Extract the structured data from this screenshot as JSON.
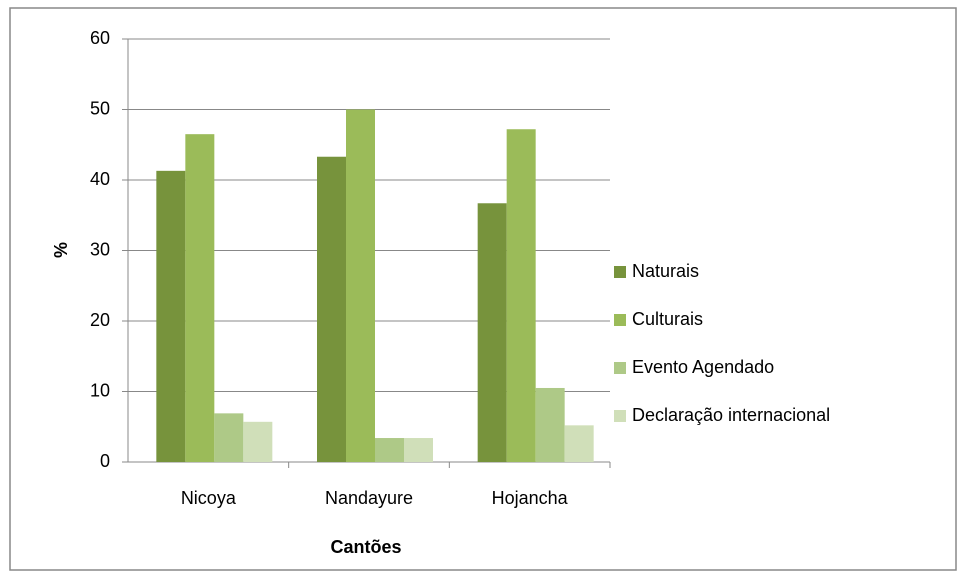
{
  "chart_data": {
    "type": "bar",
    "categories": [
      "Nicoya",
      "Nandayure",
      "Hojancha"
    ],
    "series": [
      {
        "name": "Naturais",
        "color": "#77933c",
        "values": [
          41.3,
          43.3,
          36.7
        ]
      },
      {
        "name": "Culturais",
        "color": "#9bbb59",
        "values": [
          46.5,
          50,
          47.2
        ]
      },
      {
        "name": "Evento Agendado",
        "color": "#aec987",
        "values": [
          6.9,
          3.4,
          10.5
        ]
      },
      {
        "name": "Declaração internacional",
        "color": "#d0dfb9",
        "values": [
          5.7,
          3.4,
          5.2
        ]
      }
    ],
    "ylabel": "%",
    "xlabel": "Cantões",
    "ylim": [
      0,
      60
    ],
    "yticks": [
      0,
      10,
      20,
      30,
      40,
      50,
      60
    ],
    "grid": true,
    "legend": "right"
  }
}
